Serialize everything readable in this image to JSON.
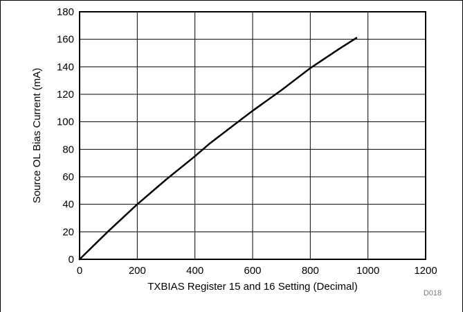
{
  "chart_data": {
    "type": "line",
    "xlabel": "TXBIAS Register 15 and 16 Setting (Decimal)",
    "ylabel": "Source OL Bias Current (mA)",
    "xlim": [
      0,
      1200
    ],
    "ylim": [
      0,
      180
    ],
    "x_ticks": [
      0,
      200,
      400,
      600,
      800,
      1000,
      1200
    ],
    "y_ticks": [
      0,
      20,
      40,
      60,
      80,
      100,
      120,
      140,
      160,
      180
    ],
    "grid": true,
    "series": [
      {
        "x": [
          0,
          100,
          200,
          300,
          400,
          450,
          500,
          600,
          700,
          800,
          900,
          960
        ],
        "y": [
          0,
          20.5,
          40,
          58,
          75,
          84,
          92,
          108,
          123,
          139,
          153,
          161
        ]
      }
    ],
    "figure_id": "D018"
  }
}
